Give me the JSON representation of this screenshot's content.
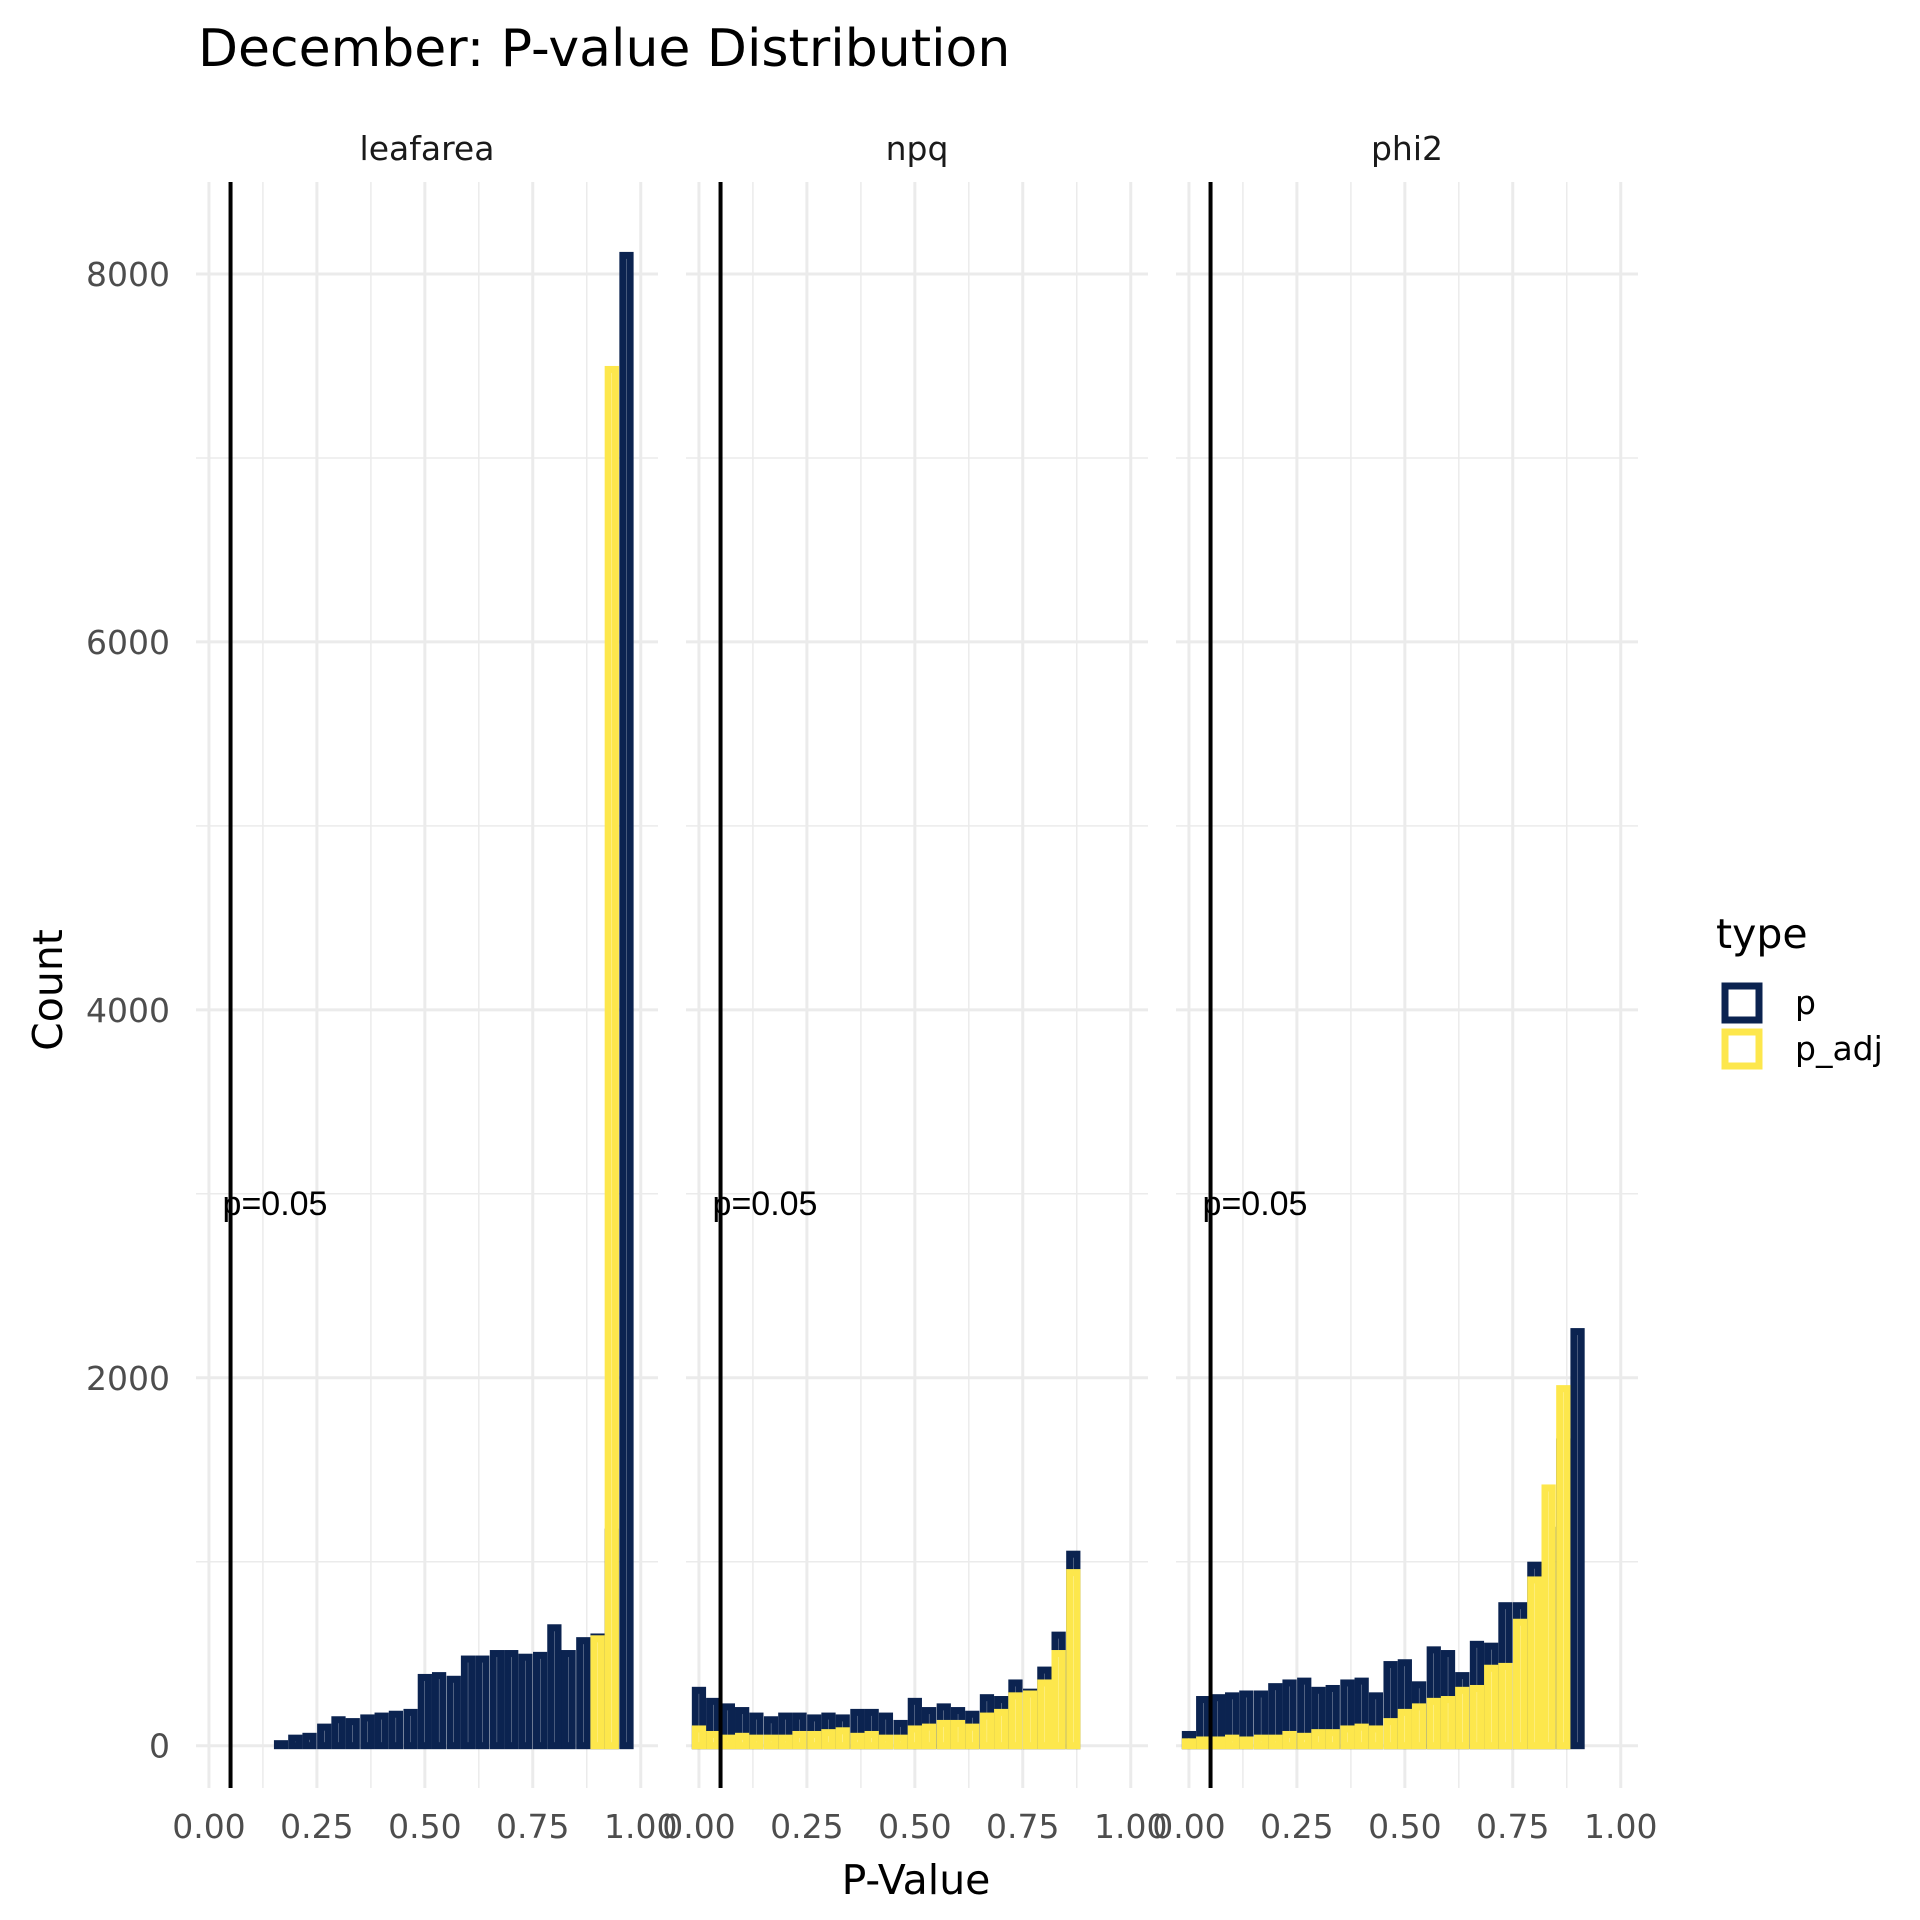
{
  "chart_data": {
    "type": "bar",
    "title": "December: P-value Distribution",
    "xlabel": "P-Value",
    "ylabel": "Count",
    "facets": [
      "leafarea",
      "npq",
      "phi2"
    ],
    "x_ticks": [
      "0.00",
      "0.25",
      "0.50",
      "0.75",
      "1.00"
    ],
    "y_ticks": [
      "0",
      "2000",
      "4000",
      "6000",
      "8000"
    ],
    "xlim": [
      -0.03,
      1.04
    ],
    "ylim": [
      -230,
      8500
    ],
    "bin_width": 0.033,
    "bin_centers": [
      0.0,
      0.033,
      0.067,
      0.1,
      0.133,
      0.167,
      0.2,
      0.233,
      0.267,
      0.3,
      0.333,
      0.367,
      0.4,
      0.433,
      0.467,
      0.5,
      0.533,
      0.567,
      0.6,
      0.633,
      0.667,
      0.7,
      0.733,
      0.767,
      0.8,
      0.833,
      0.867,
      0.9,
      0.933,
      0.967,
      1.0
    ],
    "grid": true,
    "legend": {
      "title": "type",
      "position": "right",
      "items": [
        {
          "label": "p",
          "color": "#0b2350"
        },
        {
          "label": "p_adj",
          "color": "#fde74c"
        }
      ]
    },
    "vline": {
      "x": 0.05,
      "label": "p=0.05",
      "label_y": 2950
    },
    "colors": {
      "p": "#0b2350",
      "p_adj": "#fde74c",
      "vline": "#000000",
      "grid": "#ebebeb"
    },
    "series": {
      "leafarea": {
        "p": [
          0,
          0,
          0,
          0,
          10,
          30,
          60,
          70,
          120,
          160,
          150,
          170,
          180,
          190,
          200,
          390,
          400,
          380,
          490,
          490,
          520,
          520,
          500,
          510,
          660,
          520,
          590,
          610,
          1180,
          8120,
          0
        ],
        "p_adj": [
          0,
          0,
          0,
          0,
          0,
          0,
          0,
          0,
          0,
          0,
          0,
          0,
          0,
          0,
          0,
          0,
          0,
          0,
          0,
          0,
          0,
          0,
          0,
          0,
          0,
          0,
          0,
          600,
          7500,
          0,
          0
        ]
      },
      "npq": {
        "p": [
          320,
          260,
          230,
          210,
          180,
          160,
          180,
          180,
          170,
          180,
          170,
          200,
          200,
          180,
          140,
          260,
          210,
          230,
          210,
          190,
          280,
          270,
          360,
          310,
          430,
          620,
          1060,
          0,
          0,
          0,
          0
        ],
        "p_adj": [
          110,
          80,
          60,
          70,
          60,
          60,
          60,
          80,
          80,
          90,
          100,
          70,
          80,
          60,
          60,
          110,
          120,
          140,
          140,
          120,
          180,
          200,
          290,
          300,
          360,
          520,
          960,
          0,
          0,
          0,
          0
        ]
      },
      "phi2": {
        "p": [
          80,
          270,
          280,
          290,
          300,
          300,
          340,
          360,
          370,
          320,
          330,
          360,
          370,
          290,
          460,
          470,
          350,
          540,
          520,
          400,
          570,
          560,
          780,
          780,
          1000,
          1190,
          1670,
          2270,
          0,
          0,
          0
        ],
        "p_adj": [
          40,
          50,
          50,
          60,
          50,
          60,
          60,
          80,
          70,
          90,
          90,
          110,
          120,
          110,
          150,
          200,
          230,
          260,
          270,
          320,
          330,
          440,
          450,
          690,
          920,
          1420,
          1960,
          0,
          0,
          0,
          0
        ]
      }
    }
  }
}
